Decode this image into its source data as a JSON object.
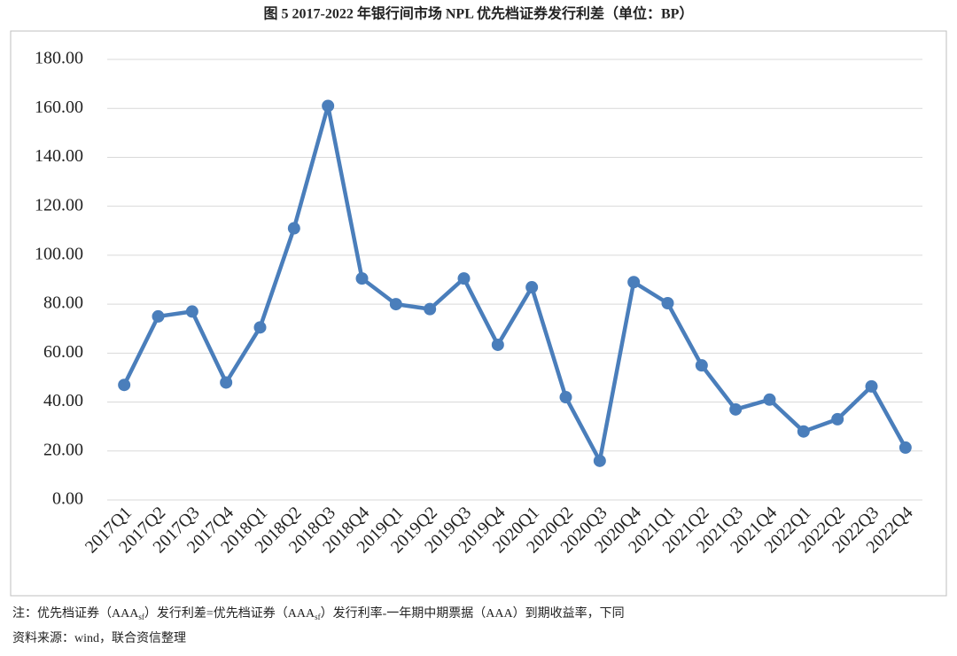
{
  "chart_data": {
    "type": "line",
    "title": "图 5   2017-2022 年银行间市场 NPL 优先档证券发行利差（单位：BP）",
    "categories": [
      "2017Q1",
      "2017Q2",
      "2017Q3",
      "2017Q4",
      "2018Q1",
      "2018Q2",
      "2018Q3",
      "2018Q4",
      "2019Q1",
      "2019Q2",
      "2019Q3",
      "2019Q4",
      "2020Q1",
      "2020Q2",
      "2020Q3",
      "2020Q4",
      "2021Q1",
      "2021Q2",
      "2021Q3",
      "2021Q4",
      "2022Q1",
      "2022Q2",
      "2022Q3",
      "2022Q4"
    ],
    "values": [
      47,
      75,
      77,
      48,
      70.5,
      111,
      161,
      90.5,
      80,
      78,
      90.5,
      63.4,
      86.9,
      42,
      16,
      89,
      80.4,
      55,
      37,
      41,
      28,
      33,
      46.4,
      21.4
    ],
    "color": "#4a7ebb",
    "ylim": [
      0,
      180
    ],
    "yticks": [
      {
        "value": 0,
        "label": "0.00"
      },
      {
        "value": 20,
        "label": "20.00"
      },
      {
        "value": 40,
        "label": "40.00"
      },
      {
        "value": 60,
        "label": "60.00"
      },
      {
        "value": 80,
        "label": "80.00"
      },
      {
        "value": 100,
        "label": "100.00"
      },
      {
        "value": 120,
        "label": "120.00"
      },
      {
        "value": 140,
        "label": "140.00"
      },
      {
        "value": 160,
        "label": "160.00"
      },
      {
        "value": 180,
        "label": "180.00"
      }
    ],
    "grid": true,
    "note_parts": [
      "注：优先档证券（AAA",
      "sf",
      "）发行利差=优先档证券（AAA",
      "sf",
      "）发行利率-一年期中期票据（AAA）到期收益率，下同"
    ],
    "source": "资料来源：wind，联合资信整理"
  }
}
